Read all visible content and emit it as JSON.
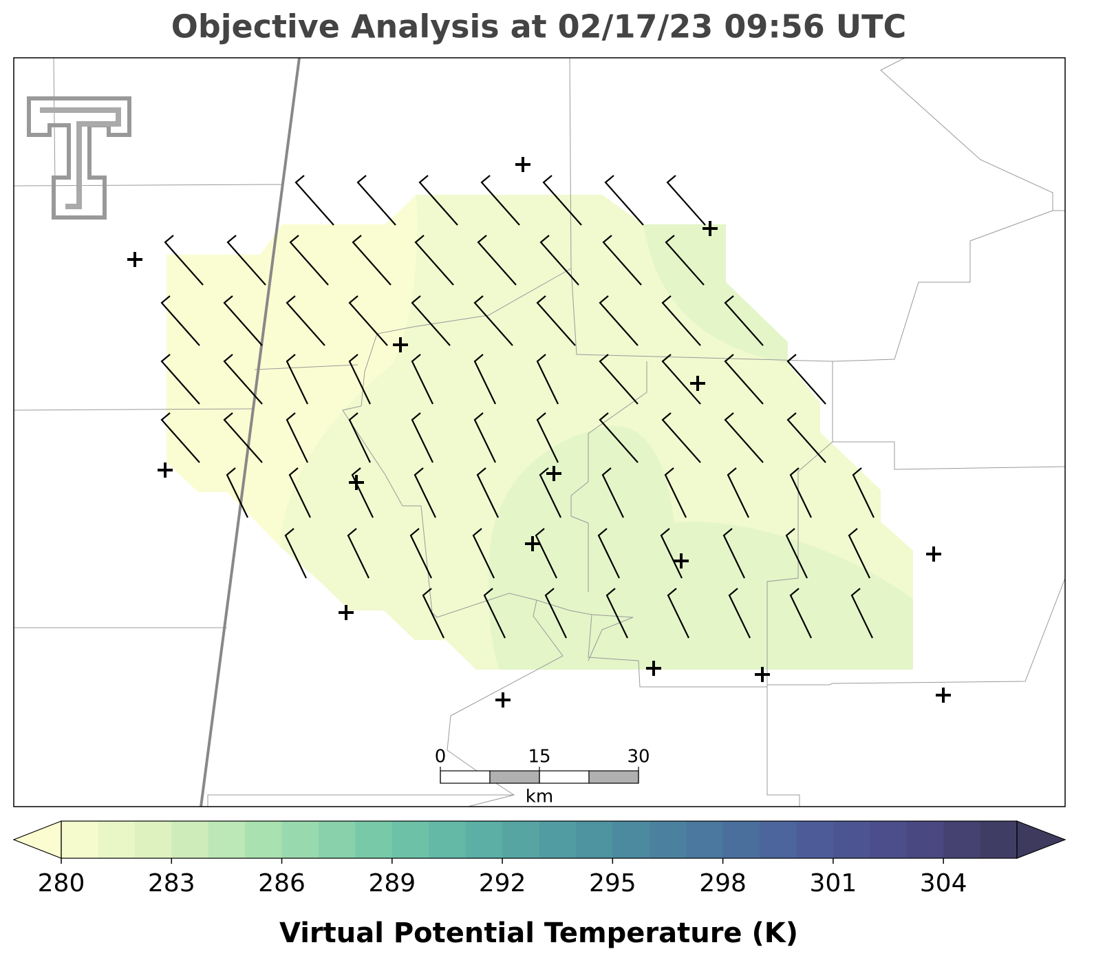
{
  "title": "Objective Analysis at 02/17/23 09:56 UTC",
  "colorbar": {
    "label": "Virtual Potential Temperature (K)",
    "lim": [
      280,
      306
    ],
    "ticks": [
      280,
      283,
      286,
      289,
      292,
      295,
      298,
      301,
      304
    ],
    "step": 1,
    "colors": [
      "#fbfdd0",
      "#d9f0bd",
      "#a5dfb0",
      "#74c8a8",
      "#5aaea5",
      "#4d93a0",
      "#4a7a9e",
      "#4d5e9b",
      "#4b4a85",
      "#3e3a5e"
    ]
  },
  "scale_bar": {
    "ticks": [
      0,
      15,
      30
    ],
    "unit": "km"
  }
}
